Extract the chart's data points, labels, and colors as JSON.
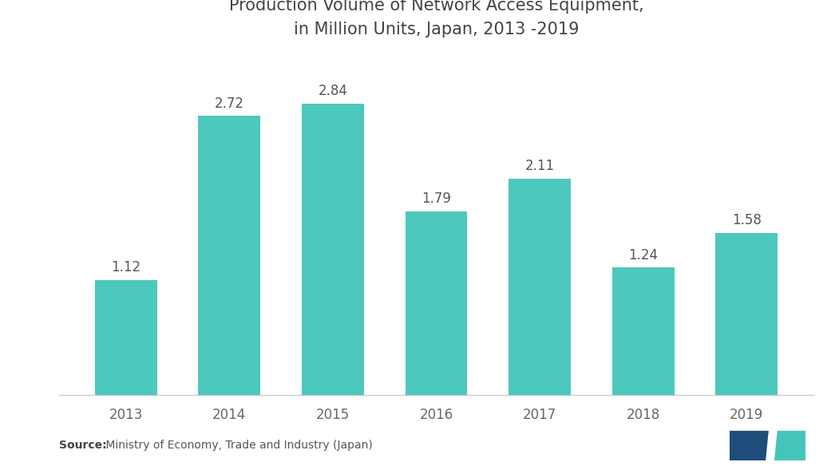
{
  "categories": [
    "2013",
    "2014",
    "2015",
    "2016",
    "2017",
    "2018",
    "2019"
  ],
  "values": [
    1.12,
    2.72,
    2.84,
    1.79,
    2.11,
    1.24,
    1.58
  ],
  "bar_color": "#4DC8BC",
  "title_line1": "Production Volume of Network Access Equipment,",
  "title_line2": "in Million Units, Japan, 2013 -2019",
  "title_fontsize": 15,
  "label_fontsize": 12,
  "tick_fontsize": 12,
  "source_normal": " Ministry of Economy, Trade and Industry (Japan)",
  "source_bold": "Source:",
  "ylim": [
    0,
    3.3
  ],
  "background_color": "#ffffff",
  "bar_width": 0.6,
  "xlim_left": -0.65,
  "xlim_right": 6.65
}
